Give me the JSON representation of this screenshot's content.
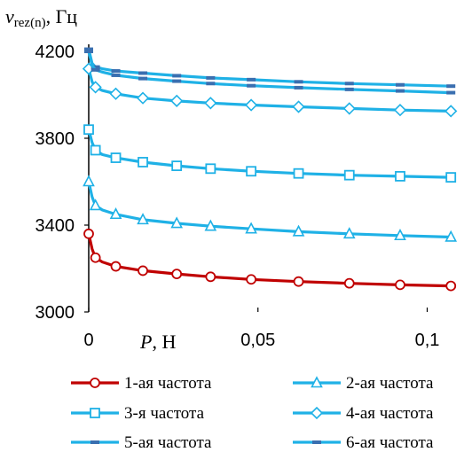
{
  "chart_data": {
    "type": "line",
    "ylabel_symbol": "v",
    "ylabel_sub": "rez(n)",
    "ylabel_unit": ", Гц",
    "xlabel_symbol": "P",
    "xlabel_unit": ", Н",
    "xlim": [
      0,
      0.11
    ],
    "ylim": [
      3000,
      4300
    ],
    "xticks": [
      {
        "value": 0,
        "label": "0"
      },
      {
        "value": 0.05,
        "label": "0,05"
      },
      {
        "value": 0.1,
        "label": "0,1"
      }
    ],
    "yticks": [
      {
        "value": 3000,
        "label": "3000"
      },
      {
        "value": 3400,
        "label": "3400"
      },
      {
        "value": 3800,
        "label": "3800"
      },
      {
        "value": 4200,
        "label": "4200"
      }
    ],
    "grid": false,
    "legend_position": "bottom",
    "series": [
      {
        "name": "1-ая частота",
        "color": "#c00000",
        "marker": "circle",
        "x": [
          0,
          0.001,
          0.002,
          0.004,
          0.008,
          0.016,
          0.026,
          0.036,
          0.048,
          0.062,
          0.077,
          0.092,
          0.107
        ],
        "y": [
          3360,
          3290,
          3250,
          3230,
          3210,
          3190,
          3175,
          3162,
          3150,
          3140,
          3132,
          3125,
          3120
        ],
        "markers_x": [
          0,
          0.002,
          0.008,
          0.016,
          0.026,
          0.036,
          0.048,
          0.062,
          0.077,
          0.092,
          0.107
        ]
      },
      {
        "name": "2-ая частота",
        "color": "#1fb1e6",
        "marker": "triangle",
        "x": [
          0,
          0.001,
          0.002,
          0.004,
          0.008,
          0.016,
          0.026,
          0.036,
          0.048,
          0.062,
          0.077,
          0.092,
          0.107
        ],
        "y": [
          3600,
          3530,
          3490,
          3470,
          3450,
          3425,
          3408,
          3395,
          3383,
          3370,
          3360,
          3352,
          3345
        ],
        "markers_x": [
          0,
          0.002,
          0.008,
          0.016,
          0.026,
          0.036,
          0.048,
          0.062,
          0.077,
          0.092,
          0.107
        ]
      },
      {
        "name": "3-я частота",
        "color": "#1fb1e6",
        "marker": "square",
        "x": [
          0,
          0.001,
          0.002,
          0.004,
          0.008,
          0.016,
          0.026,
          0.036,
          0.048,
          0.062,
          0.077,
          0.092,
          0.107
        ],
        "y": [
          3840,
          3780,
          3745,
          3725,
          3710,
          3690,
          3673,
          3660,
          3648,
          3638,
          3630,
          3625,
          3620
        ],
        "markers_x": [
          0,
          0.002,
          0.008,
          0.016,
          0.026,
          0.036,
          0.048,
          0.062,
          0.077,
          0.092,
          0.107
        ]
      },
      {
        "name": "4-ая частота",
        "color": "#1fb1e6",
        "marker": "diamond",
        "x": [
          0,
          0.001,
          0.002,
          0.004,
          0.008,
          0.016,
          0.026,
          0.036,
          0.048,
          0.062,
          0.077,
          0.092,
          0.107
        ],
        "y": [
          4120,
          4060,
          4035,
          4020,
          4005,
          3985,
          3972,
          3962,
          3953,
          3945,
          3937,
          3930,
          3925
        ],
        "markers_x": [
          0,
          0.002,
          0.008,
          0.016,
          0.026,
          0.036,
          0.048,
          0.062,
          0.077,
          0.092,
          0.107
        ]
      },
      {
        "name": "5-ая частота",
        "color": "#1fb1e6",
        "marker": "dash",
        "x": [
          0,
          0.001,
          0.002,
          0.004,
          0.008,
          0.016,
          0.026,
          0.036,
          0.048,
          0.062,
          0.077,
          0.092,
          0.107
        ],
        "y": [
          4210,
          4145,
          4128,
          4120,
          4110,
          4100,
          4088,
          4078,
          4070,
          4060,
          4052,
          4046,
          4040
        ],
        "markers_x": [
          0,
          0.002,
          0.008,
          0.016,
          0.026,
          0.036,
          0.048,
          0.062,
          0.077,
          0.092,
          0.107
        ]
      },
      {
        "name": "6-ая частота",
        "color": "#1fb1e6",
        "marker": "dash",
        "x": [
          0,
          0.001,
          0.002,
          0.004,
          0.008,
          0.016,
          0.026,
          0.036,
          0.048,
          0.062,
          0.077,
          0.092,
          0.107
        ],
        "y": [
          4200,
          4135,
          4115,
          4105,
          4090,
          4075,
          4063,
          4052,
          4042,
          4033,
          4025,
          4018,
          4010
        ],
        "markers_x": [
          0,
          0.002,
          0.008,
          0.016,
          0.026,
          0.036,
          0.048,
          0.062,
          0.077,
          0.092,
          0.107
        ]
      }
    ]
  }
}
